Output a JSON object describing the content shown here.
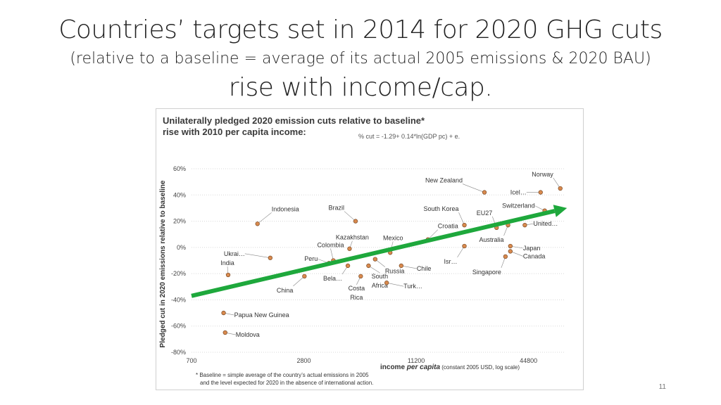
{
  "slide": {
    "title_line1": "Countries’ targets set in 2014 for 2020 GHG cuts",
    "title_line2": "(relative to a baseline = average of its actual 2005 emissions & 2020 BAU)",
    "title_line3": "rise with income/cap.",
    "page_number": "11"
  },
  "figure": {
    "title_line1": "Unilaterally pledged 2020 emission cuts relative to baseline*",
    "title_line2": "rise with 2010 per capita income:",
    "formula": "% cut = -1.29+ 0.14*ln(GDP pc) + e.",
    "footnote_line1": "* Baseline = simple average of the country’s actual emissions in 2005",
    "footnote_line2": "and the level expected for 2020 in the absence of international action."
  },
  "colors": {
    "point_fill": "#d98a4e",
    "point_stroke": "#7a4a25",
    "trend_arrow": "#1ea83c",
    "grid": "#d8d8d8"
  },
  "chart_data": {
    "type": "scatter",
    "x_scale": "log",
    "xlim": [
      700,
      70000
    ],
    "ylim": [
      -0.8,
      0.6
    ],
    "x_ticks": [
      700,
      2800,
      11200,
      44800
    ],
    "x_tick_labels": [
      "700",
      "2800",
      "11200",
      "44800"
    ],
    "y_ticks": [
      0.6,
      0.4,
      0.2,
      0,
      -0.2,
      -0.4,
      -0.6,
      -0.8
    ],
    "y_tick_labels": [
      "60%",
      "40%",
      "20%",
      "0%",
      "-20%",
      "-40%",
      "-60%",
      "-80%"
    ],
    "ylabel": "Pledged cut in 2020 emissions relative to baseline",
    "xlabel_bold": "income",
    "xlabel_bold_italic": " per capita",
    "xlabel_rest": " (constant 2005 USD, log scale)",
    "grid": true,
    "points": [
      {
        "label": "India",
        "x": 1100,
        "y": -0.21
      },
      {
        "label": "Papua New Guinea",
        "x": 1040,
        "y": -0.5
      },
      {
        "label": "Moldova",
        "x": 1060,
        "y": -0.65
      },
      {
        "label": "Indonesia",
        "x": 1580,
        "y": 0.18
      },
      {
        "label": "Ukrai…",
        "x": 1850,
        "y": -0.08
      },
      {
        "label": "China",
        "x": 2820,
        "y": -0.22
      },
      {
        "label": "Peru",
        "x": 3820,
        "y": -0.12
      },
      {
        "label": "Colombia",
        "x": 4030,
        "y": -0.1
      },
      {
        "label": "Bela…",
        "x": 4820,
        "y": -0.14
      },
      {
        "label": "Brazil",
        "x": 5300,
        "y": 0.2
      },
      {
        "label": "Kazakhstan",
        "x": 4920,
        "y": -0.01
      },
      {
        "label": "Costa Rica",
        "x": 5650,
        "y": -0.22
      },
      {
        "label": "South Africa",
        "x": 6220,
        "y": -0.14
      },
      {
        "label": "Russia",
        "x": 6750,
        "y": -0.09
      },
      {
        "label": "Mexico",
        "x": 8130,
        "y": -0.04
      },
      {
        "label": "Turk…",
        "x": 7780,
        "y": -0.27
      },
      {
        "label": "Chile",
        "x": 9310,
        "y": -0.14
      },
      {
        "label": "Croatia",
        "x": 12950,
        "y": 0.06
      },
      {
        "label": "New Zealand",
        "x": 26000,
        "y": 0.42
      },
      {
        "label": "South Korea",
        "x": 20300,
        "y": 0.17
      },
      {
        "label": "Isr…",
        "x": 20300,
        "y": 0.01
      },
      {
        "label": "EU27",
        "x": 30200,
        "y": 0.15
      },
      {
        "label": "Australia",
        "x": 34800,
        "y": 0.17
      },
      {
        "label": "Switzerland",
        "x": 54700,
        "y": 0.28
      },
      {
        "label": "United…",
        "x": 42800,
        "y": 0.17
      },
      {
        "label": "Japan",
        "x": 35800,
        "y": 0.01
      },
      {
        "label": "Canada",
        "x": 35800,
        "y": -0.03
      },
      {
        "label": "Singapore",
        "x": 33700,
        "y": -0.07
      },
      {
        "label": "Icel…",
        "x": 52000,
        "y": 0.42
      },
      {
        "label": "Norway",
        "x": 66300,
        "y": 0.45
      }
    ],
    "trend_arrow": {
      "from": {
        "x": 700,
        "y": -0.37
      },
      "to": {
        "x": 72000,
        "y": 0.3
      }
    }
  }
}
